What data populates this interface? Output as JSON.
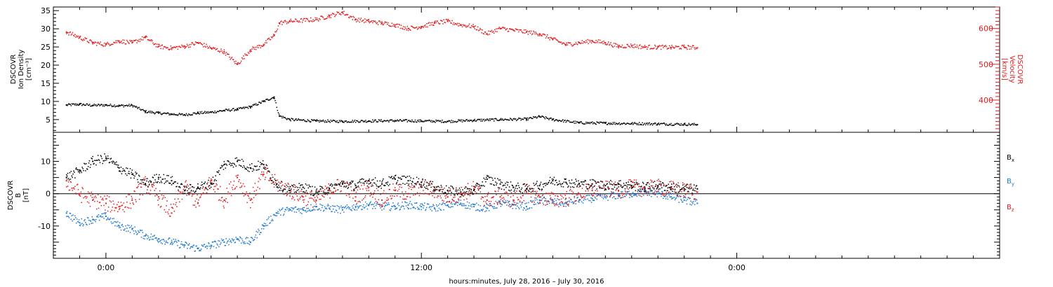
{
  "colors": {
    "black": "#000000",
    "red": "#e41a1c",
    "blue": "#1f78d1"
  },
  "chart_data": [
    {
      "type": "scatter",
      "panel": "top",
      "left_axis": {
        "label_lines": [
          "DSCOVR",
          "Ion Density",
          "[cm⁻³]"
        ],
        "ticks": [
          5,
          10,
          15,
          20,
          25,
          30,
          35
        ],
        "ylim": [
          1.5,
          36
        ]
      },
      "right_axis": {
        "label_lines": [
          "DSCOVR",
          "Velocity",
          "[km/s]"
        ],
        "ticks": [
          400,
          500,
          600
        ],
        "ylim": [
          310,
          660
        ]
      },
      "series": [
        {
          "color": "black",
          "axis": "left",
          "x": [
            -1.5,
            -1.0,
            -0.5,
            0.0,
            0.5,
            1.0,
            1.5,
            2.0,
            2.5,
            3.0,
            3.5,
            4.0,
            4.5,
            5.0,
            5.5,
            6.0,
            6.4,
            6.6,
            7.0,
            8.0,
            9.0,
            10.0,
            11.0,
            12.0,
            13.0,
            14.0,
            15.0,
            16.0,
            16.5,
            17.0,
            18.0,
            19.0,
            20.0,
            21.0,
            22.0,
            22.5
          ],
          "y": [
            9.0,
            9.2,
            8.9,
            9.0,
            8.8,
            8.9,
            7.2,
            6.8,
            6.5,
            6.3,
            6.8,
            7.0,
            7.5,
            7.8,
            8.5,
            10.0,
            11.2,
            6.0,
            5.0,
            4.6,
            4.5,
            4.6,
            4.7,
            4.6,
            4.5,
            4.8,
            5.0,
            5.1,
            5.8,
            5.0,
            4.1,
            4.0,
            3.9,
            3.8,
            3.7,
            3.6
          ]
        },
        {
          "color": "red",
          "axis": "right",
          "x": [
            -1.5,
            -1.0,
            -0.5,
            0.0,
            0.5,
            1.0,
            1.5,
            2.0,
            2.5,
            3.0,
            3.5,
            4.0,
            4.5,
            5.0,
            5.5,
            6.0,
            6.4,
            6.6,
            7.0,
            8.0,
            8.5,
            9.0,
            9.5,
            10.0,
            10.5,
            11.0,
            11.5,
            12.0,
            12.5,
            13.0,
            13.5,
            14.0,
            14.5,
            15.0,
            15.5,
            16.0,
            16.5,
            17.0,
            17.5,
            18.0,
            18.5,
            19.0,
            19.5,
            20.0,
            20.5,
            21.0,
            21.5,
            22.0,
            22.5
          ],
          "y": [
            590,
            575,
            560,
            555,
            565,
            560,
            575,
            550,
            545,
            550,
            560,
            545,
            535,
            500,
            540,
            555,
            580,
            615,
            620,
            625,
            635,
            645,
            625,
            620,
            615,
            610,
            600,
            605,
            615,
            620,
            610,
            605,
            585,
            600,
            595,
            590,
            585,
            570,
            555,
            560,
            565,
            560,
            550,
            552,
            548,
            548,
            547,
            548,
            546
          ]
        }
      ]
    },
    {
      "type": "scatter",
      "panel": "bottom",
      "left_axis": {
        "label_lines": [
          "DSCOVR",
          "B",
          "[nT]"
        ],
        "ticks": [
          -10,
          0,
          10
        ],
        "ylim": [
          -20,
          19
        ]
      },
      "zero_line": true,
      "legend_placement": "right",
      "series": [
        {
          "name": "B",
          "subscript": "x",
          "color": "black",
          "x": [
            -1.5,
            -1.0,
            -0.5,
            0.0,
            0.5,
            1.0,
            1.5,
            2.0,
            2.5,
            3.0,
            3.5,
            4.0,
            4.5,
            5.0,
            5.5,
            6.0,
            6.5,
            7.0,
            7.5,
            8.0,
            8.5,
            9.0,
            9.5,
            10.0,
            10.5,
            11.0,
            11.5,
            12.0,
            12.5,
            13.0,
            13.5,
            14.0,
            14.5,
            15.0,
            15.5,
            16.0,
            16.5,
            17.0,
            17.5,
            18.0,
            18.5,
            19.0,
            19.5,
            20.0,
            20.5,
            21.0,
            21.5,
            22.0,
            22.5
          ],
          "y": [
            5.0,
            7.0,
            10.0,
            11.0,
            8.0,
            6.0,
            3.0,
            5.0,
            4.0,
            1.0,
            2.0,
            3.0,
            9.0,
            10.0,
            8.0,
            9.0,
            3.0,
            1.0,
            2.0,
            0.5,
            1.5,
            3.0,
            2.5,
            4.0,
            3.0,
            4.5,
            4.0,
            3.5,
            2.0,
            1.0,
            0.5,
            1.0,
            4.5,
            3.0,
            2.0,
            1.5,
            2.5,
            4.0,
            3.5,
            3.0,
            3.0,
            2.5,
            3.0,
            2.5,
            2.0,
            2.5,
            2.0,
            1.5,
            1.5
          ]
        },
        {
          "name": "B",
          "subscript": "y",
          "color": "blue",
          "x": [
            -1.5,
            -1.0,
            -0.5,
            0.0,
            0.5,
            1.0,
            1.5,
            2.0,
            2.5,
            3.0,
            3.5,
            4.0,
            4.5,
            5.0,
            5.5,
            6.0,
            6.5,
            7.0,
            7.5,
            8.0,
            8.5,
            9.0,
            9.5,
            10.0,
            10.5,
            11.0,
            11.5,
            12.0,
            12.5,
            13.0,
            13.5,
            14.0,
            14.5,
            15.0,
            15.5,
            16.0,
            16.5,
            17.0,
            17.5,
            18.0,
            18.5,
            19.0,
            19.5,
            20.0,
            20.5,
            21.0,
            21.5,
            22.0,
            22.5
          ],
          "y": [
            -6.0,
            -9.0,
            -8.0,
            -7.0,
            -10.0,
            -11.0,
            -13.0,
            -14.0,
            -15.0,
            -16.0,
            -17.0,
            -16.0,
            -15.0,
            -14.0,
            -15.0,
            -10.0,
            -6.0,
            -5.0,
            -5.0,
            -4.0,
            -4.5,
            -5.0,
            -4.0,
            -3.5,
            -4.0,
            -4.0,
            -3.5,
            -4.0,
            -4.5,
            -3.5,
            -3.0,
            -4.0,
            -4.5,
            -3.0,
            -3.5,
            -4.0,
            -2.0,
            -2.5,
            -3.0,
            -2.0,
            -1.5,
            -1.0,
            -0.5,
            0.0,
            0.5,
            0.0,
            -1.0,
            -2.0,
            -3.0
          ]
        },
        {
          "name": "B",
          "subscript": "z",
          "color": "red",
          "x": [
            -1.5,
            -1.0,
            -0.5,
            0.0,
            0.5,
            1.0,
            1.5,
            2.0,
            2.5,
            3.0,
            3.5,
            4.0,
            4.5,
            5.0,
            5.5,
            6.0,
            6.5,
            7.0,
            7.5,
            8.0,
            8.5,
            9.0,
            9.5,
            10.0,
            10.5,
            11.0,
            11.5,
            12.0,
            12.5,
            13.0,
            13.5,
            14.0,
            14.5,
            15.0,
            15.5,
            16.0,
            16.5,
            17.0,
            17.5,
            18.0,
            18.5,
            19.0,
            19.5,
            20.0,
            20.5,
            21.0,
            21.5,
            22.0,
            22.5
          ],
          "y": [
            4.0,
            0.0,
            -2.0,
            -3.0,
            -4.0,
            -2.0,
            3.0,
            -1.0,
            -6.0,
            2.0,
            -3.0,
            4.0,
            -2.0,
            5.0,
            -2.0,
            6.0,
            3.0,
            1.0,
            -1.0,
            -2.0,
            1.0,
            3.0,
            -1.0,
            2.0,
            -2.0,
            1.0,
            0.0,
            2.0,
            1.0,
            -1.0,
            0.0,
            1.5,
            -2.0,
            -1.0,
            -2.0,
            0.5,
            -1.0,
            -2.0,
            -1.5,
            0.0,
            1.0,
            1.5,
            1.0,
            2.0,
            1.5,
            2.0,
            1.5,
            1.0,
            0.5
          ]
        }
      ]
    },
    {
      "type": "axis",
      "panel": "x",
      "xlabel": "hours:minutes, July 28, 2016 – July 30, 2016",
      "xlim": [
        -2.0,
        34.0
      ],
      "major_tick_labels": [
        {
          "x": 0,
          "label": "0:00"
        },
        {
          "x": 12,
          "label": "12:00"
        },
        {
          "x": 24,
          "label": "0:00"
        }
      ]
    }
  ]
}
